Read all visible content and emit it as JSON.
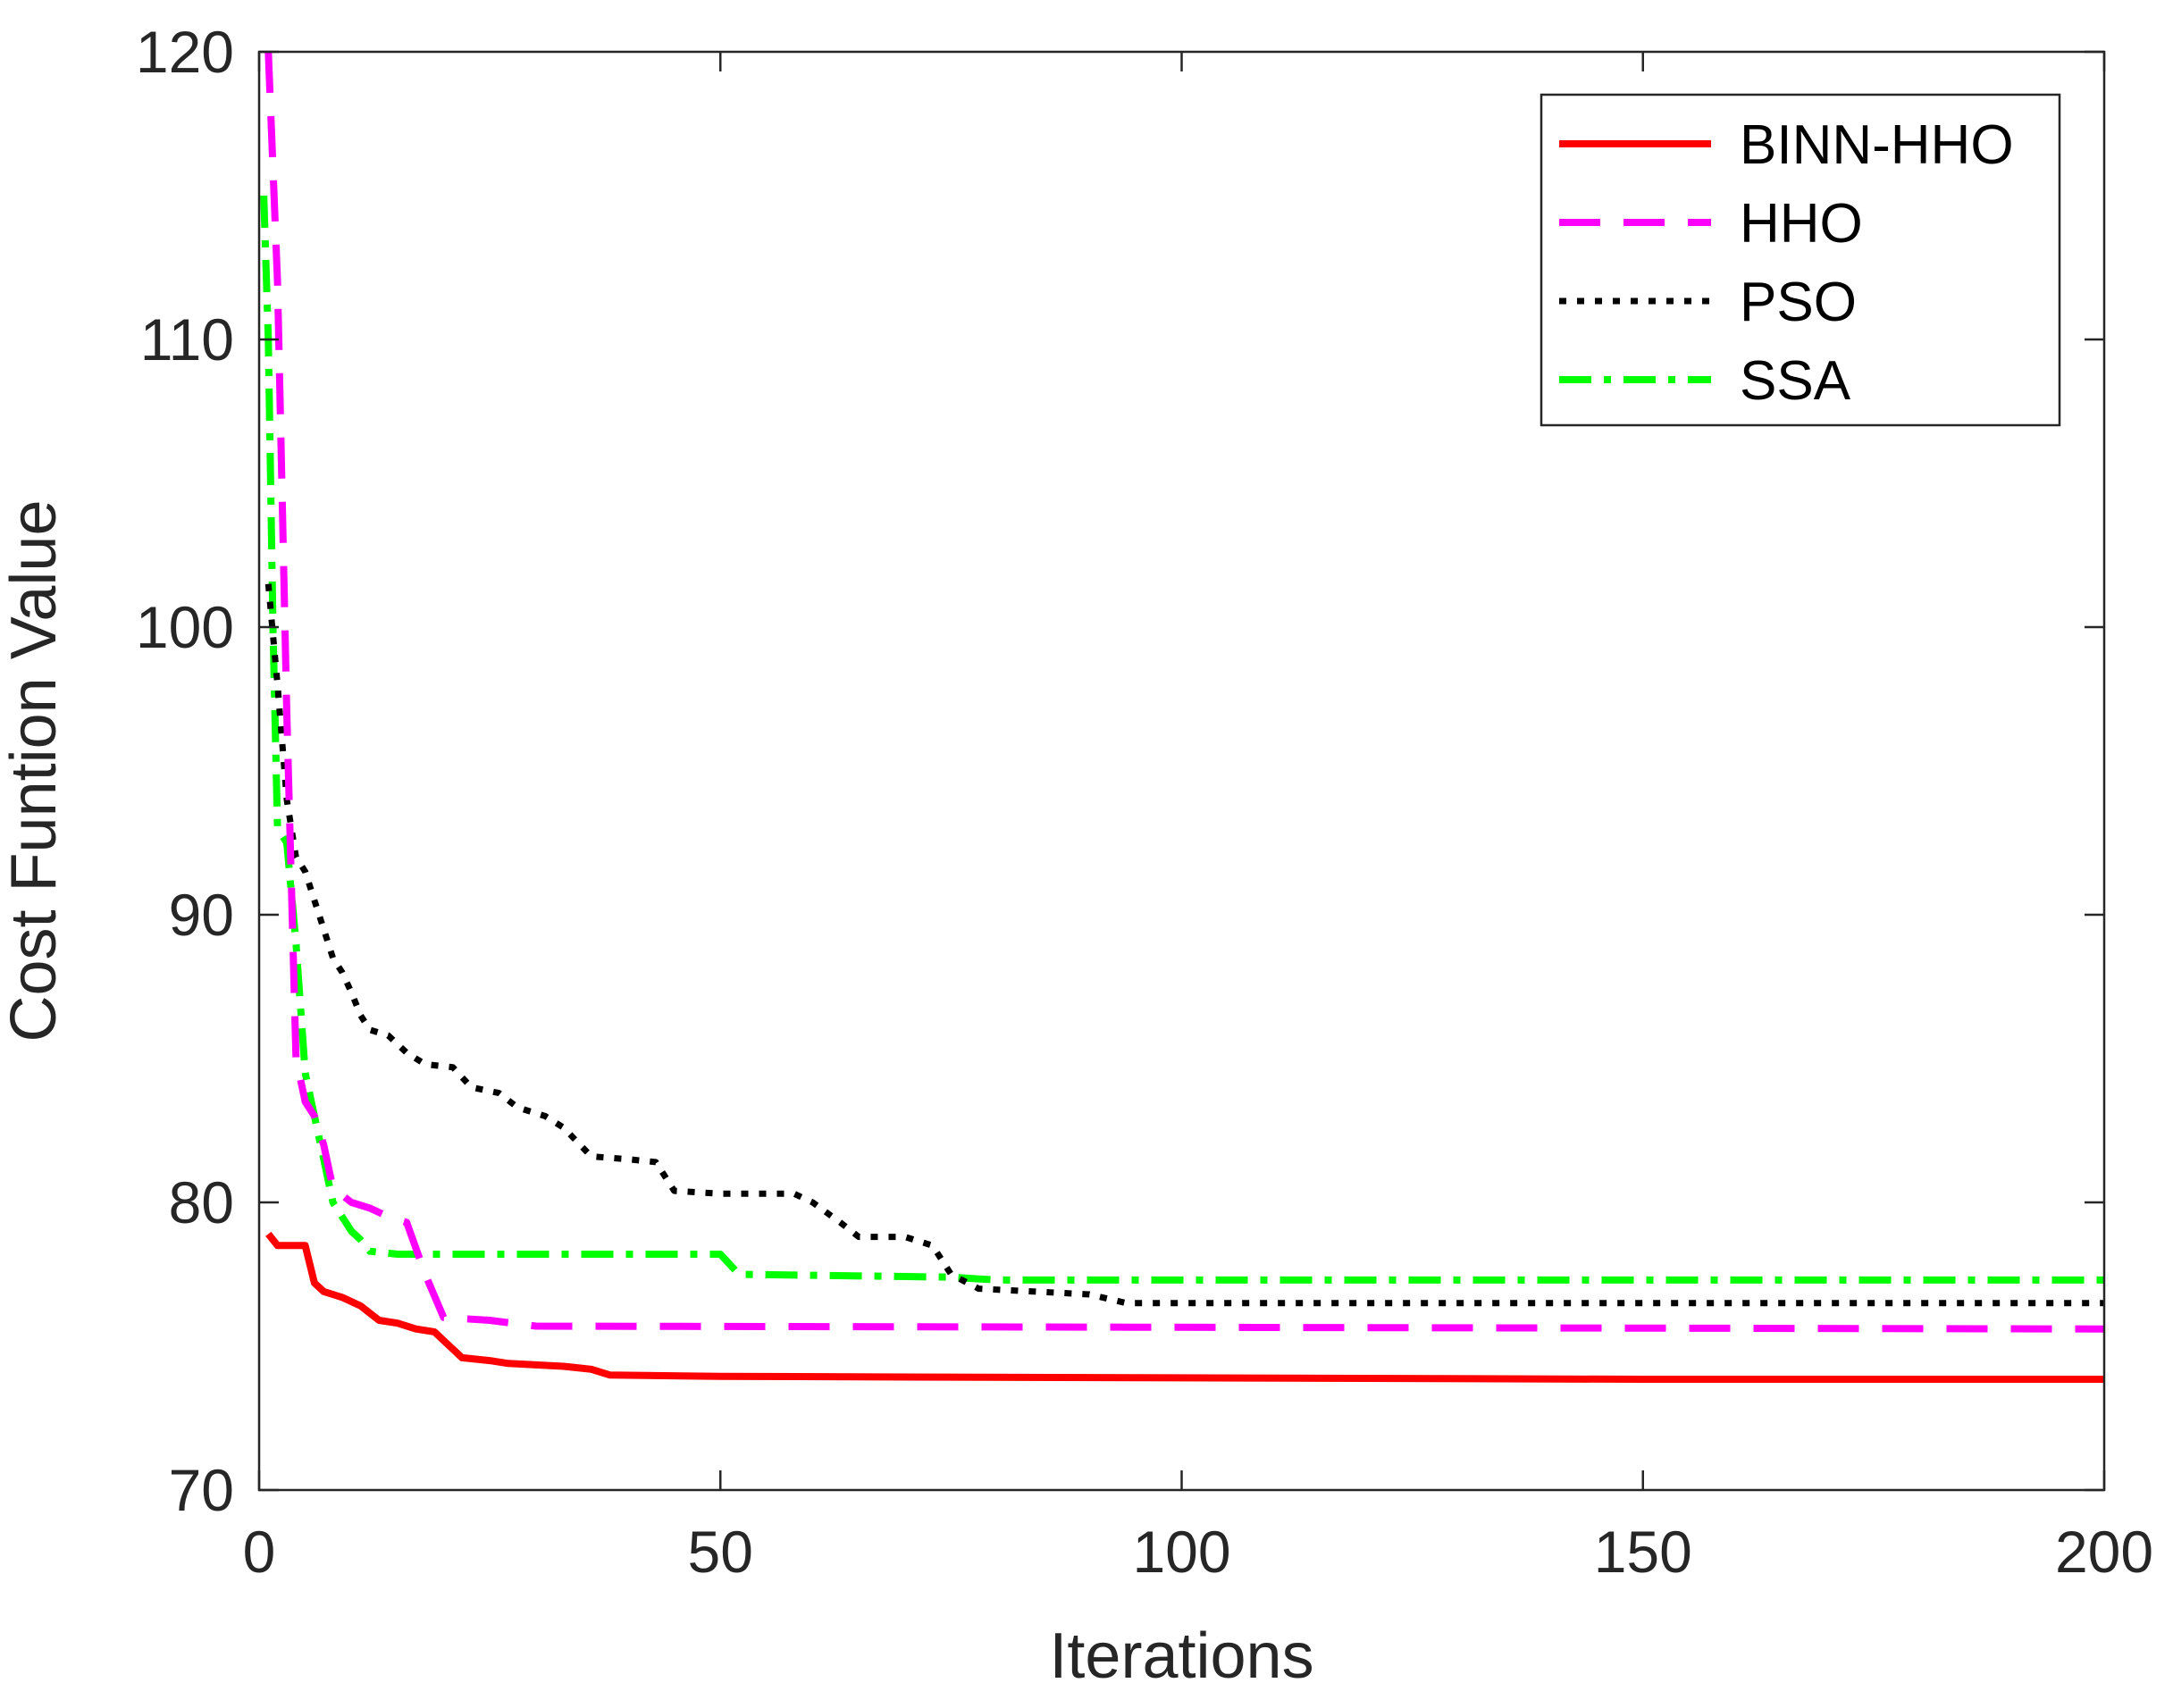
{
  "chart_data": {
    "type": "line",
    "xlabel": "Iterations",
    "ylabel": "Cost Funtion Value",
    "xlim": [
      0,
      200
    ],
    "ylim": [
      70,
      120
    ],
    "xticks": [
      0,
      50,
      100,
      150,
      200
    ],
    "yticks": [
      70,
      80,
      90,
      100,
      110,
      120
    ],
    "xtick_labels": [
      "0",
      "50",
      "100",
      "150",
      "200"
    ],
    "ytick_labels": [
      "70",
      "80",
      "90",
      "100",
      "110",
      "120"
    ],
    "grid": false,
    "legend_position": "top-right",
    "series": [
      {
        "name": "BINN-HHO",
        "color": "#ff0000",
        "style": "solid",
        "points": [
          [
            1,
            78.9
          ],
          [
            2,
            78.5
          ],
          [
            5,
            78.5
          ],
          [
            6,
            77.2
          ],
          [
            7,
            76.9
          ],
          [
            9,
            76.7
          ],
          [
            11,
            76.4
          ],
          [
            13,
            75.9
          ],
          [
            15,
            75.8
          ],
          [
            17,
            75.6
          ],
          [
            19,
            75.5
          ],
          [
            20,
            75.2
          ],
          [
            22,
            74.6
          ],
          [
            25,
            74.5
          ],
          [
            27,
            74.4
          ],
          [
            33,
            74.3
          ],
          [
            36,
            74.2
          ],
          [
            38,
            74.0
          ],
          [
            50,
            73.95
          ],
          [
            100,
            73.9
          ],
          [
            150,
            73.85
          ],
          [
            200,
            73.85
          ]
        ]
      },
      {
        "name": "HHO",
        "color": "#ff00ff",
        "style": "dashed",
        "points": [
          [
            1,
            120
          ],
          [
            2,
            112
          ],
          [
            3,
            97
          ],
          [
            4,
            85
          ],
          [
            5,
            83.5
          ],
          [
            6,
            83
          ],
          [
            7,
            82
          ],
          [
            8,
            80.5
          ],
          [
            10,
            80
          ],
          [
            12,
            79.8
          ],
          [
            14,
            79.5
          ],
          [
            16,
            79.3
          ],
          [
            18,
            77.5
          ],
          [
            20,
            76
          ],
          [
            25,
            75.9
          ],
          [
            30,
            75.7
          ],
          [
            200,
            75.6
          ]
        ]
      },
      {
        "name": "PSO",
        "color": "#000000",
        "style": "dotted",
        "points": [
          [
            1,
            101.5
          ],
          [
            2,
            98
          ],
          [
            3,
            94
          ],
          [
            4,
            92
          ],
          [
            5,
            91.5
          ],
          [
            6,
            90.5
          ],
          [
            7,
            89.5
          ],
          [
            8,
            88.5
          ],
          [
            9,
            88
          ],
          [
            10,
            87.3
          ],
          [
            11,
            86.5
          ],
          [
            12,
            86
          ],
          [
            14,
            85.8
          ],
          [
            16,
            85.2
          ],
          [
            18,
            84.8
          ],
          [
            21,
            84.7
          ],
          [
            23,
            84
          ],
          [
            26,
            83.8
          ],
          [
            28,
            83.3
          ],
          [
            31,
            83
          ],
          [
            33,
            82.6
          ],
          [
            36,
            81.6
          ],
          [
            40,
            81.5
          ],
          [
            43,
            81.4
          ],
          [
            45,
            80.4
          ],
          [
            50,
            80.3
          ],
          [
            58,
            80.3
          ],
          [
            60,
            80
          ],
          [
            63,
            79.3
          ],
          [
            65,
            78.8
          ],
          [
            70,
            78.8
          ],
          [
            73,
            78.5
          ],
          [
            75,
            77.5
          ],
          [
            78,
            77
          ],
          [
            90,
            76.8
          ],
          [
            94,
            76.5
          ],
          [
            200,
            76.5
          ]
        ]
      },
      {
        "name": "SSA",
        "color": "#00ff00",
        "style": "dashdot",
        "points": [
          [
            0.5,
            115
          ],
          [
            1,
            110
          ],
          [
            1.5,
            100
          ],
          [
            2,
            93
          ],
          [
            3,
            92.5
          ],
          [
            4,
            89
          ],
          [
            5,
            84.5
          ],
          [
            6,
            83
          ],
          [
            7,
            81.5
          ],
          [
            8,
            80
          ],
          [
            9,
            79.5
          ],
          [
            10,
            79
          ],
          [
            11,
            78.7
          ],
          [
            12,
            78.3
          ],
          [
            15,
            78.2
          ],
          [
            30,
            78.2
          ],
          [
            50,
            78.2
          ],
          [
            52,
            77.5
          ],
          [
            75,
            77.4
          ],
          [
            80,
            77.3
          ],
          [
            200,
            77.3
          ]
        ]
      }
    ]
  }
}
